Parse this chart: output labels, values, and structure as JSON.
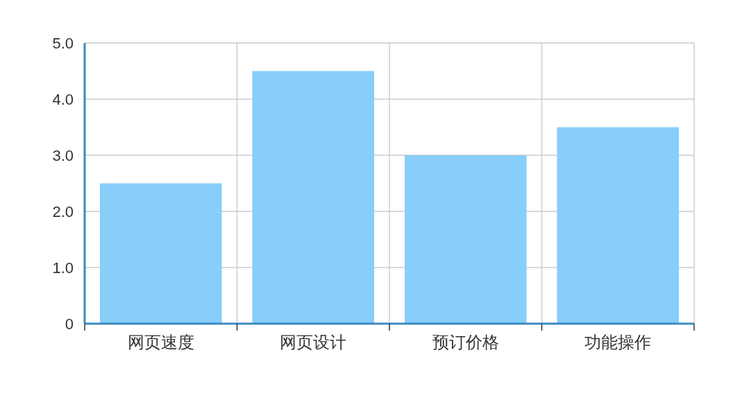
{
  "chart_data": {
    "type": "bar",
    "categories": [
      "网页速度",
      "网页设计",
      "预订价格",
      "功能操作"
    ],
    "values": [
      2.5,
      4.5,
      3.0,
      3.5
    ],
    "color": "#87cefa",
    "ylim": [
      0,
      5
    ],
    "yticks": [
      0,
      {
        "value": 1,
        "label": "1.0"
      },
      {
        "value": 2,
        "label": "2.0"
      },
      {
        "value": 3,
        "label": "3.0"
      },
      {
        "value": 4,
        "label": "4.0"
      },
      {
        "value": 5,
        "label": "5.0"
      }
    ],
    "grid": true
  }
}
